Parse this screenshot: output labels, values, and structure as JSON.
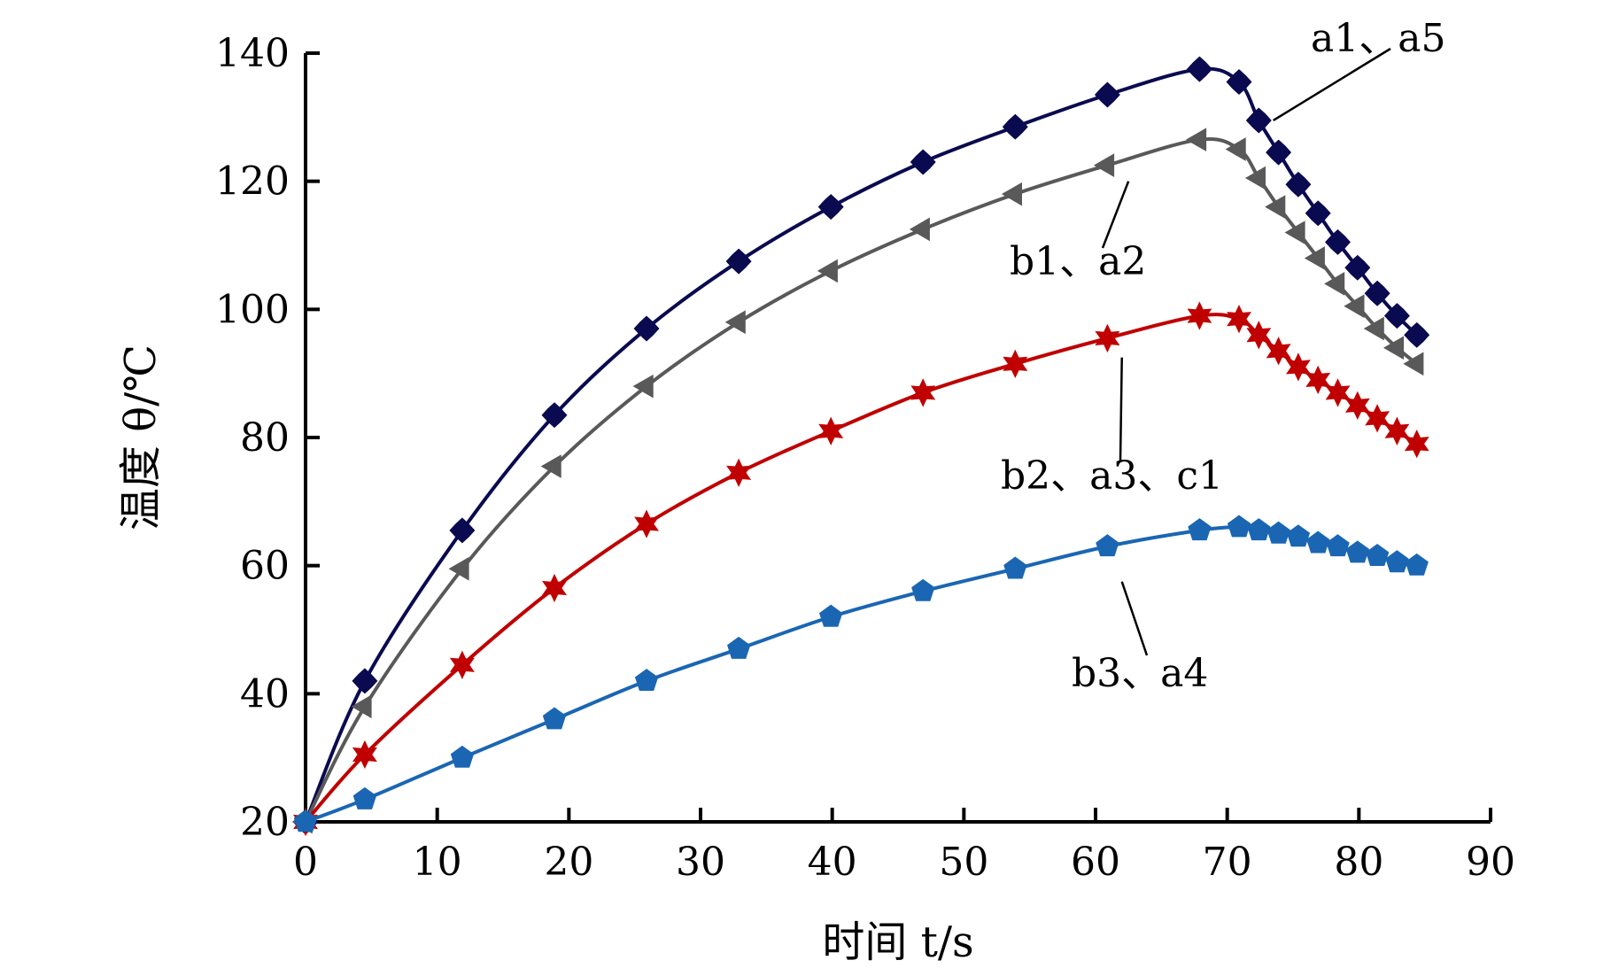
{
  "chart_data": {
    "type": "line",
    "xlabel": "时间 t/s",
    "ylabel": "温度 θ/℃",
    "xlim": [
      0,
      90
    ],
    "ylim": [
      20,
      140
    ],
    "xticks": [
      0,
      10,
      20,
      30,
      40,
      50,
      60,
      70,
      80,
      90
    ],
    "yticks": [
      20,
      40,
      60,
      80,
      100,
      120,
      140
    ],
    "grid": false,
    "series": [
      {
        "marker": "diamond",
        "color": "#0a0a50",
        "x": [
          0,
          4.5,
          11.9,
          18.9,
          25.9,
          32.9,
          39.9,
          46.9,
          53.9,
          60.9,
          67.9,
          70.9,
          72.4,
          73.9,
          75.4,
          76.9,
          78.4,
          79.9,
          81.4,
          82.9,
          84.4
        ],
        "y": [
          20,
          42,
          65.5,
          83.5,
          97,
          107.5,
          116,
          123,
          128.5,
          133.5,
          137.5,
          135.5,
          129.5,
          124.5,
          119.5,
          115,
          110.5,
          106.5,
          102.5,
          99,
          96
        ]
      },
      {
        "marker": "triangle",
        "color": "#595959",
        "x": [
          0,
          4.5,
          11.9,
          18.9,
          25.9,
          32.9,
          39.9,
          46.9,
          53.9,
          60.9,
          67.9,
          70.9,
          72.4,
          73.9,
          75.4,
          76.9,
          78.4,
          79.9,
          81.4,
          82.9,
          84.4
        ],
        "y": [
          20,
          38,
          59.5,
          75.5,
          88,
          98,
          106,
          112.5,
          118,
          122.5,
          126.5,
          125,
          120.5,
          116,
          112,
          108,
          104,
          100.5,
          97,
          94,
          91.5
        ]
      },
      {
        "marker": "star",
        "color": "#c00000",
        "x": [
          0,
          4.5,
          11.9,
          18.9,
          25.9,
          32.9,
          39.9,
          46.9,
          53.9,
          60.9,
          67.9,
          70.9,
          72.4,
          73.9,
          75.4,
          76.9,
          78.4,
          79.9,
          81.4,
          82.9,
          84.4
        ],
        "y": [
          20,
          30.5,
          44.5,
          56.5,
          66.5,
          74.5,
          81,
          87,
          91.5,
          95.5,
          99,
          98.5,
          96,
          93.5,
          91,
          89,
          87,
          85,
          83,
          81,
          79
        ]
      },
      {
        "marker": "pentagon",
        "color": "#1a66b3",
        "x": [
          0,
          4.5,
          11.9,
          18.9,
          25.9,
          32.9,
          39.9,
          46.9,
          53.9,
          60.9,
          67.9,
          70.9,
          72.4,
          73.9,
          75.4,
          76.9,
          78.4,
          79.9,
          81.4,
          82.9,
          84.4
        ],
        "y": [
          20,
          23.5,
          30,
          36,
          42,
          47,
          52,
          56,
          59.5,
          63,
          65.5,
          66,
          65.5,
          65,
          64.5,
          63.5,
          63,
          62,
          61.5,
          60.5,
          60
        ]
      }
    ],
    "annotations": [
      {
        "text": "a1、a5",
        "target": [
          73.5,
          129.5
        ]
      },
      {
        "text": "b1、a2",
        "target": [
          62.5,
          120
        ]
      },
      {
        "text": "b2、a3、c1",
        "target": [
          62,
          92.5
        ]
      },
      {
        "text": "b3、a4",
        "target": [
          62,
          57.5
        ]
      }
    ]
  }
}
